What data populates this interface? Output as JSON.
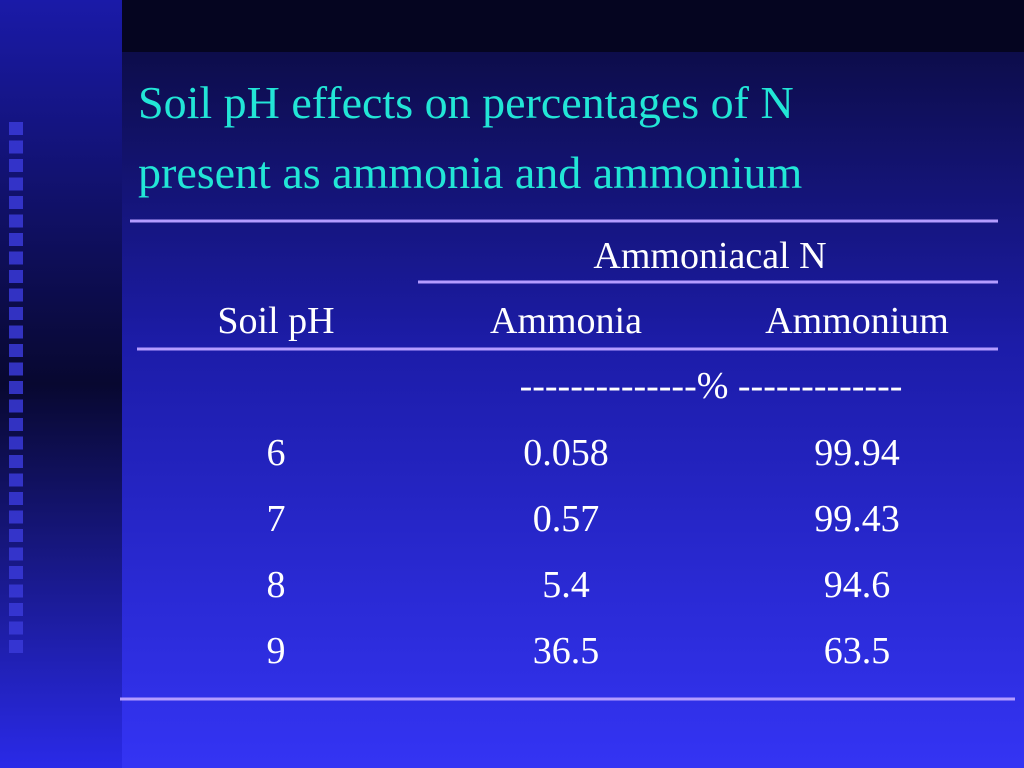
{
  "title": [
    "Soil pH effects on percentages of N",
    "present as ammonia and ammonium"
  ],
  "table": {
    "group_header": "Ammoniacal N",
    "columns": [
      "Soil pH",
      "Ammonia",
      "Ammonium"
    ],
    "units_row": "--------------% -------------",
    "rows": [
      [
        6,
        0.058,
        99.94
      ],
      [
        7,
        0.57,
        99.43
      ],
      [
        8,
        5.4,
        94.6
      ],
      [
        9,
        36.5,
        63.5
      ]
    ]
  }
}
